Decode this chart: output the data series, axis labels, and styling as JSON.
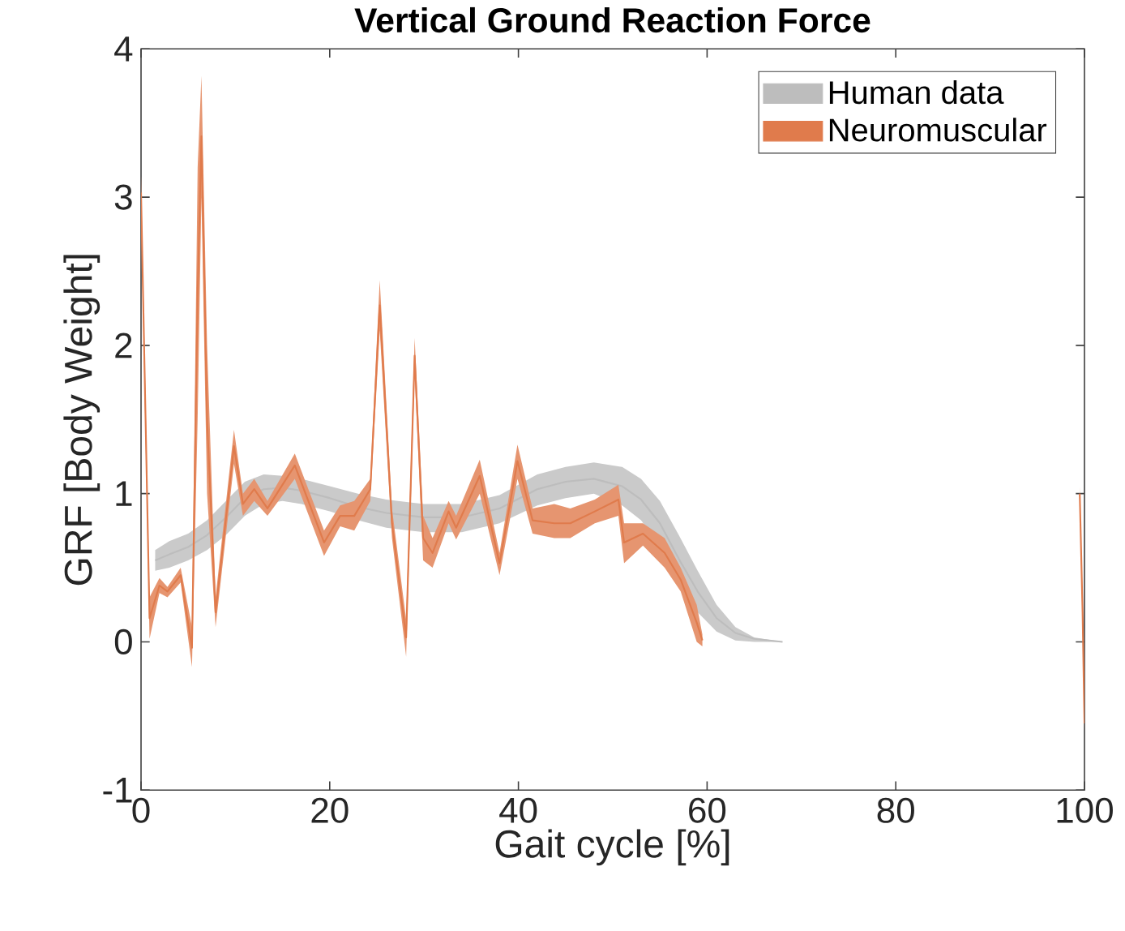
{
  "chart_data": {
    "type": "line",
    "title": "Vertical Ground Reaction Force",
    "xlabel": "Gait cycle [%]",
    "ylabel": "GRF [Body Weight]",
    "xlim": [
      0,
      100
    ],
    "ylim": [
      -1,
      4
    ],
    "xticks": [
      0,
      20,
      40,
      60,
      80,
      100
    ],
    "yticks": [
      -1,
      0,
      1,
      2,
      3,
      4
    ],
    "grid": false,
    "legend": "top right",
    "series": [
      {
        "name": "Human data",
        "color": "#bdbdbd",
        "x": [
          1.5,
          3,
          5,
          7,
          9,
          11,
          13,
          15,
          17,
          20,
          23,
          26,
          30,
          34,
          38,
          42,
          45,
          48,
          51,
          53,
          55,
          57,
          59,
          61,
          63,
          65,
          68
        ],
        "values": [
          0.55,
          0.59,
          0.64,
          0.72,
          0.84,
          0.97,
          1.03,
          1.04,
          1.02,
          0.97,
          0.91,
          0.87,
          0.84,
          0.84,
          0.9,
          1.03,
          1.08,
          1.1,
          1.05,
          0.96,
          0.8,
          0.56,
          0.34,
          0.16,
          0.06,
          0.02,
          0.0
        ],
        "lower": [
          0.48,
          0.5,
          0.55,
          0.62,
          0.72,
          0.85,
          0.93,
          0.95,
          0.93,
          0.88,
          0.82,
          0.77,
          0.74,
          0.74,
          0.8,
          0.92,
          0.97,
          1.0,
          0.92,
          0.82,
          0.65,
          0.4,
          0.2,
          0.07,
          0.01,
          0.0,
          0.0
        ],
        "upper": [
          0.62,
          0.68,
          0.73,
          0.82,
          0.95,
          1.08,
          1.13,
          1.12,
          1.1,
          1.05,
          1.0,
          0.96,
          0.93,
          0.93,
          0.99,
          1.13,
          1.18,
          1.21,
          1.18,
          1.1,
          0.95,
          0.72,
          0.48,
          0.25,
          0.1,
          0.03,
          0.0
        ]
      },
      {
        "name": "Neuromuscular",
        "color": "#e07b4c",
        "x": [
          0,
          0.9,
          1.95,
          2.8,
          4.2,
          5.4,
          6.0,
          6.4,
          7.0,
          7.9,
          9.85,
          10.8,
          12.0,
          13.4,
          16.3,
          19.4,
          21.1,
          22.6,
          24.3,
          25.3,
          26.6,
          28.1,
          29.0,
          29.9,
          30.9,
          32.6,
          33.4,
          35.9,
          38.0,
          39.9,
          41.5,
          43.8,
          45.5,
          48.1,
          50.6,
          51.2,
          53.2,
          55.5,
          57.2,
          58.9,
          59.5,
          80,
          99.5,
          99.8,
          100
        ],
        "values": [
          3.03,
          0.16,
          0.38,
          0.34,
          0.45,
          -0.04,
          2.35,
          3.41,
          1.5,
          0.2,
          1.32,
          0.93,
          1.03,
          0.9,
          1.19,
          0.67,
          0.85,
          0.85,
          1.03,
          2.27,
          0.8,
          0.03,
          1.93,
          0.7,
          0.6,
          0.88,
          0.77,
          1.12,
          0.53,
          1.22,
          0.82,
          0.8,
          0.8,
          0.88,
          0.96,
          0.67,
          0.73,
          0.6,
          0.42,
          0.13,
          0.01,
          null,
          1.0,
          0.2,
          -0.55
        ],
        "lower": [
          2.9,
          0.02,
          0.33,
          0.3,
          0.4,
          -0.17,
          1.5,
          3.0,
          1.0,
          0.1,
          1.2,
          0.85,
          0.95,
          0.85,
          1.1,
          0.58,
          0.78,
          0.75,
          0.95,
          2.1,
          0.7,
          -0.1,
          1.8,
          0.55,
          0.5,
          0.8,
          0.69,
          1.0,
          0.45,
          1.1,
          0.73,
          0.7,
          0.7,
          0.8,
          0.85,
          0.53,
          0.65,
          0.5,
          0.34,
          0.0,
          -0.03,
          null,
          0.95,
          0.1,
          -0.6
        ],
        "upper": [
          3.15,
          0.3,
          0.43,
          0.37,
          0.5,
          0.1,
          3.2,
          3.82,
          2.0,
          0.3,
          1.43,
          1.0,
          1.1,
          0.95,
          1.27,
          0.75,
          0.92,
          0.95,
          1.1,
          2.44,
          0.9,
          0.15,
          2.05,
          0.85,
          0.7,
          0.95,
          0.85,
          1.23,
          0.6,
          1.33,
          0.9,
          0.93,
          0.9,
          0.96,
          1.06,
          0.8,
          0.8,
          0.7,
          0.5,
          0.25,
          0.05,
          null,
          1.05,
          0.3,
          -0.5
        ]
      }
    ]
  }
}
